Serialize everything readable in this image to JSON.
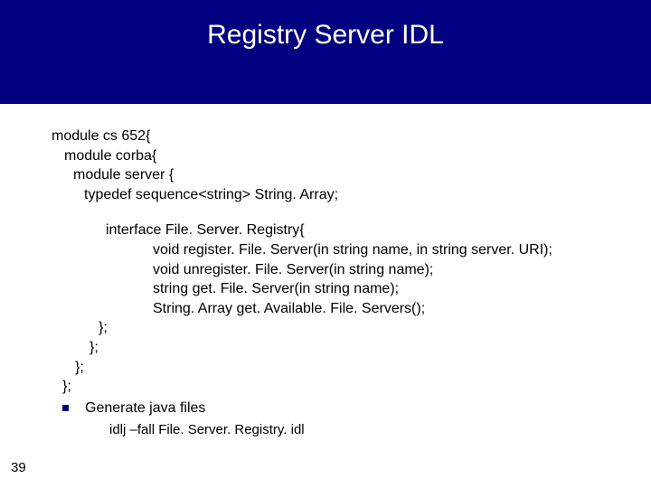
{
  "title": "Registry Server IDL",
  "code": {
    "l1": "module cs 652{",
    "l2": "module corba{",
    "l3": "module server {",
    "l4": "typedef sequence<string> String. Array;",
    "l5": "interface File. Server. Registry{",
    "l6": "void register. File. Server(in string name, in string server. URI);",
    "l7": "void unregister. File. Server(in string name);",
    "l8": "string get. File. Server(in string name);",
    "l9": "String. Array get. Available. File. Servers();",
    "l10": "};",
    "l11": "};",
    "l12": "};",
    "l13": "};"
  },
  "bullet_text": "Generate java files",
  "sub_text": "idlj –fall File. Server. Registry. idl",
  "page_number": "39",
  "colors": {
    "header_bg": "#000080",
    "title_color": "#ffffff",
    "text_color": "#000000",
    "bullet_color": "#000080",
    "page_bg": "#ffffff"
  },
  "fonts": {
    "title_size": 30,
    "body_size": 16,
    "sub_size": 15
  }
}
